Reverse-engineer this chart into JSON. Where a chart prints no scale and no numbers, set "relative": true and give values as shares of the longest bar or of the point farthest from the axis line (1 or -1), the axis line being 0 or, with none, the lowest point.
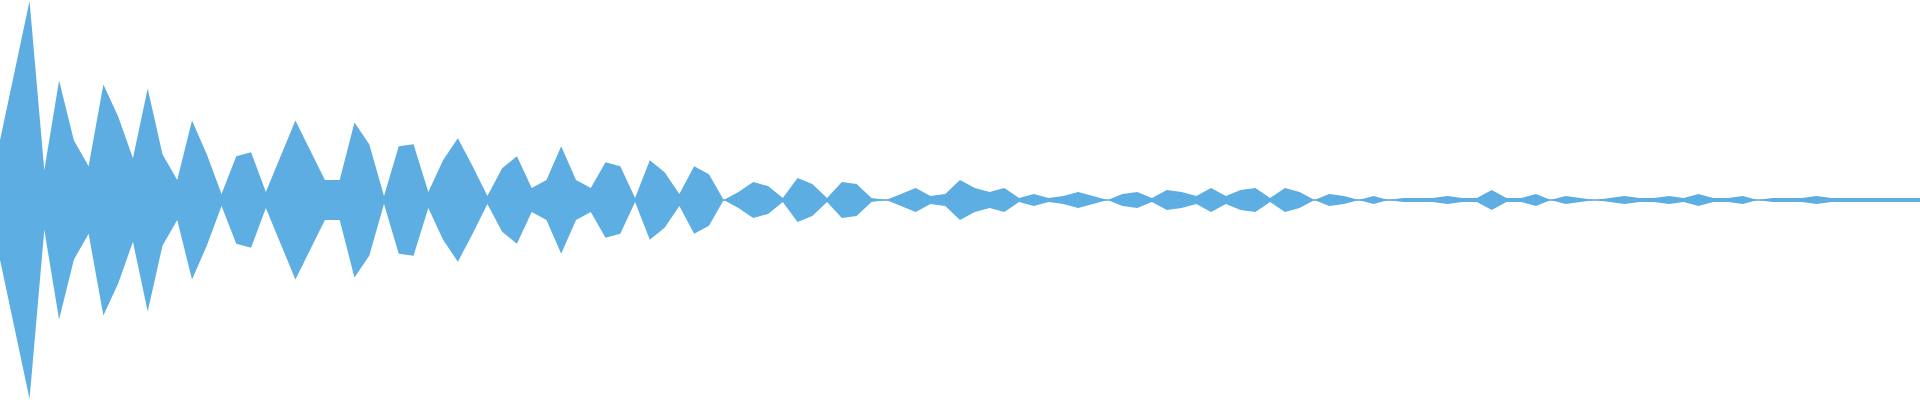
{
  "chart_data": {
    "type": "area",
    "relative": true,
    "ref_lines": [
      {
        "axis": "y",
        "value": 0,
        "color": "#5dade2"
      }
    ],
    "categories": [
      null,
      null,
      null,
      null,
      null,
      null,
      null,
      null,
      null,
      null,
      null,
      null,
      null,
      null,
      null,
      null,
      null,
      null,
      null,
      null,
      null,
      null,
      null,
      null,
      null,
      null,
      null,
      null,
      null,
      null,
      null,
      null,
      null,
      null,
      null,
      null,
      null,
      null,
      null,
      null,
      null,
      null,
      null,
      null,
      null,
      null,
      null,
      null,
      null,
      null,
      null,
      null,
      null,
      null,
      null,
      null,
      null,
      null,
      null,
      null,
      null,
      null,
      null,
      null,
      null,
      null,
      null,
      null,
      null,
      null,
      null,
      null,
      null,
      null,
      null,
      null,
      null,
      null,
      null,
      null,
      null,
      null,
      null,
      null,
      null,
      null,
      null,
      null,
      null,
      null,
      null,
      null,
      null,
      null,
      null,
      null,
      null,
      null,
      null,
      null,
      null,
      null,
      null,
      null,
      null,
      null,
      null,
      null,
      null,
      null,
      null,
      null,
      null,
      null,
      null,
      null,
      null,
      null,
      null,
      null,
      null,
      null,
      null,
      null,
      null,
      null,
      null,
      null,
      null,
      null,
      null
    ],
    "series": [
      {
        "color": "#5dade2",
        "values": [
          0.3,
          0.65,
          1.0,
          0.15,
          0.6,
          0.3,
          0.17,
          0.58,
          0.42,
          0.21,
          0.56,
          0.23,
          0.1,
          0.4,
          0.23,
          0.03,
          0.22,
          0.24,
          0.04,
          0.22,
          0.4,
          0.25,
          0.1,
          0.1,
          0.39,
          0.28,
          0.02,
          0.27,
          0.28,
          0.04,
          0.2,
          0.31,
          0.17,
          0.02,
          0.16,
          0.22,
          0.06,
          0.1,
          0.27,
          0.1,
          0.06,
          0.19,
          0.17,
          0.01,
          0.2,
          0.14,
          0.03,
          0.17,
          0.13,
          0.0,
          0.04,
          0.09,
          0.07,
          0.01,
          0.11,
          0.08,
          0.01,
          0.09,
          0.08,
          0.01,
          0.0,
          0.03,
          0.06,
          0.02,
          0.03,
          0.1,
          0.06,
          0.04,
          0.06,
          0.01,
          0.03,
          0.01,
          0.02,
          0.04,
          0.02,
          0.0,
          0.03,
          0.04,
          0.01,
          0.05,
          0.04,
          0.02,
          0.06,
          0.02,
          0.05,
          0.06,
          0.01,
          0.06,
          0.04,
          0.0,
          0.03,
          0.02,
          0.0,
          0.02,
          0.0,
          0.01,
          0.01,
          0.01,
          0.02,
          0.01,
          0.01,
          0.05,
          0.01,
          0.01,
          0.03,
          0.0,
          0.02,
          0.01,
          0.0,
          0.01,
          0.02,
          0.01,
          0.01,
          0.02,
          0.01,
          0.03,
          0.01,
          0.01,
          0.02,
          0.0,
          0.01,
          0.01,
          0.01,
          0.02,
          0.01,
          0.01,
          0.01,
          0.01,
          0.01,
          0.01,
          0.01
        ]
      },
      {
        "color": "#5caee3",
        "values": [
          -0.3,
          -0.65,
          -1.0,
          -0.15,
          -0.6,
          -0.3,
          -0.17,
          -0.58,
          -0.42,
          -0.21,
          -0.56,
          -0.23,
          -0.1,
          -0.4,
          -0.23,
          -0.03,
          -0.22,
          -0.24,
          -0.04,
          -0.22,
          -0.4,
          -0.25,
          -0.1,
          -0.1,
          -0.39,
          -0.28,
          -0.02,
          -0.27,
          -0.28,
          -0.04,
          -0.2,
          -0.31,
          -0.17,
          -0.02,
          -0.16,
          -0.22,
          -0.06,
          -0.1,
          -0.27,
          -0.1,
          -0.06,
          -0.19,
          -0.17,
          -0.01,
          -0.2,
          -0.14,
          -0.03,
          -0.17,
          -0.13,
          0.0,
          -0.04,
          -0.09,
          -0.07,
          -0.01,
          -0.11,
          -0.08,
          -0.01,
          -0.09,
          -0.08,
          -0.01,
          0.0,
          -0.03,
          -0.06,
          -0.02,
          -0.03,
          -0.1,
          -0.06,
          -0.04,
          -0.06,
          -0.01,
          -0.03,
          -0.01,
          -0.02,
          -0.04,
          -0.02,
          0.0,
          -0.03,
          -0.04,
          -0.01,
          -0.05,
          -0.04,
          -0.02,
          -0.06,
          -0.02,
          -0.05,
          -0.06,
          -0.01,
          -0.06,
          -0.04,
          0.0,
          -0.03,
          -0.02,
          0.0,
          -0.02,
          0.0,
          -0.01,
          -0.01,
          -0.01,
          -0.02,
          -0.01,
          -0.01,
          -0.05,
          -0.01,
          -0.01,
          -0.03,
          0.0,
          -0.02,
          -0.01,
          0.0,
          -0.01,
          -0.02,
          -0.01,
          -0.01,
          -0.02,
          -0.01,
          -0.03,
          -0.01,
          -0.01,
          -0.02,
          0.0,
          -0.01,
          -0.01,
          -0.01,
          -0.02,
          -0.01,
          -0.01,
          -0.01,
          -0.01,
          -0.01,
          -0.01,
          -0.01
        ]
      }
    ]
  }
}
